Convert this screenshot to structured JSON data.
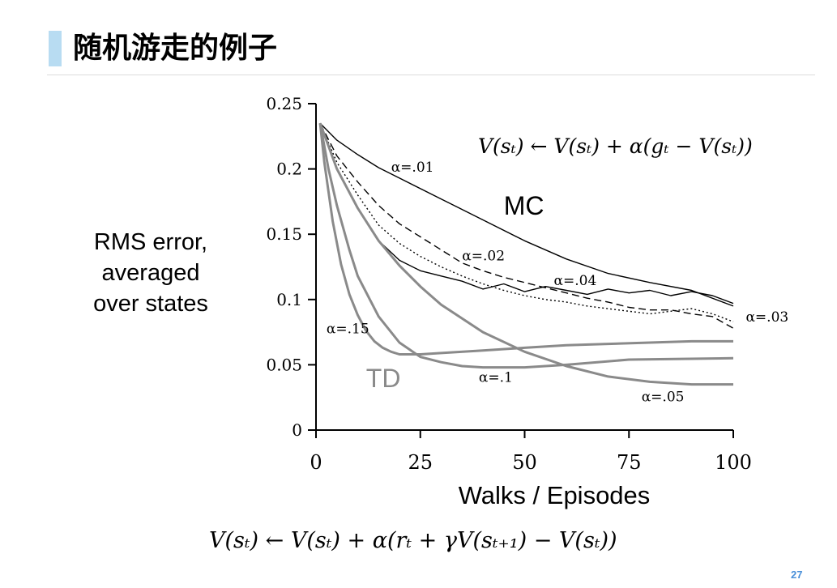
{
  "slide": {
    "title": "随机游走的例子",
    "page_number": "27",
    "colors": {
      "accent_bar": "#b8dcf2",
      "page_number": "#4a90d9",
      "mc_lines": "#000000",
      "td_lines": "#8a8a8a"
    }
  },
  "formulas": {
    "mc_update": "V(sₜ) ← V(sₜ) + α(gₜ − V(sₜ))",
    "td_update": "V(sₜ) ← V(sₜ) + α(rₜ + γV(sₜ₊₁) − V(sₜ))"
  },
  "chart_data": {
    "type": "line",
    "xlabel": "Walks / Episodes",
    "ylabel": "RMS error,\naveraged\nover states",
    "xlim": [
      0,
      100
    ],
    "ylim": [
      0,
      0.25
    ],
    "xticks": [
      0,
      25,
      50,
      75,
      100
    ],
    "xtick_labels": [
      "0",
      "25",
      "50",
      "75",
      "100"
    ],
    "yticks": [
      0,
      0.05,
      0.1,
      0.15,
      0.2,
      0.25
    ],
    "ytick_labels": [
      "0",
      "0.05",
      "0.1",
      "0.15",
      "0.2",
      "0.25"
    ],
    "grid": false,
    "group_labels": [
      {
        "text": "MC",
        "x": 45,
        "y": 0.165,
        "color": "#000000"
      },
      {
        "text": "TD",
        "x": 12,
        "y": 0.033,
        "color": "#8a8a8a"
      }
    ],
    "series": [
      {
        "name": "α=.01",
        "group": "MC",
        "style": "solid",
        "x": [
          1,
          5,
          10,
          15,
          20,
          30,
          40,
          50,
          60,
          70,
          80,
          90,
          100
        ],
        "y": [
          0.235,
          0.222,
          0.211,
          0.201,
          0.193,
          0.177,
          0.161,
          0.145,
          0.131,
          0.12,
          0.113,
          0.107,
          0.095
        ],
        "label": {
          "text": "α=.01",
          "x": 18,
          "y": 0.198
        }
      },
      {
        "name": "α=.02",
        "group": "MC",
        "style": "dashed",
        "x": [
          1,
          5,
          10,
          15,
          20,
          25,
          30,
          35,
          40,
          45,
          50,
          55,
          60,
          65,
          70,
          75,
          80,
          85,
          90,
          95,
          100
        ],
        "y": [
          0.235,
          0.21,
          0.19,
          0.172,
          0.158,
          0.148,
          0.138,
          0.128,
          0.122,
          0.117,
          0.113,
          0.109,
          0.105,
          0.101,
          0.098,
          0.094,
          0.092,
          0.092,
          0.089,
          0.087,
          0.078
        ],
        "label": {
          "text": "α=.02",
          "x": 35,
          "y": 0.13
        }
      },
      {
        "name": "α=.04",
        "group": "MC",
        "style": "solid",
        "x": [
          1,
          5,
          10,
          15,
          20,
          25,
          30,
          35,
          40,
          45,
          50,
          55,
          60,
          65,
          70,
          75,
          80,
          85,
          90,
          95,
          100
        ],
        "y": [
          0.235,
          0.2,
          0.17,
          0.145,
          0.13,
          0.122,
          0.118,
          0.114,
          0.108,
          0.112,
          0.106,
          0.11,
          0.107,
          0.104,
          0.108,
          0.105,
          0.107,
          0.103,
          0.106,
          0.103,
          0.097
        ],
        "label": {
          "text": "α=.04",
          "x": 57,
          "y": 0.111
        }
      },
      {
        "name": "α=.03",
        "group": "MC",
        "style": "dotted",
        "x": [
          1,
          5,
          10,
          15,
          20,
          25,
          30,
          35,
          40,
          45,
          50,
          55,
          60,
          65,
          70,
          75,
          80,
          85,
          90,
          95,
          100
        ],
        "y": [
          0.235,
          0.205,
          0.18,
          0.157,
          0.143,
          0.133,
          0.125,
          0.118,
          0.112,
          0.107,
          0.103,
          0.1,
          0.098,
          0.095,
          0.093,
          0.091,
          0.089,
          0.091,
          0.093,
          0.089,
          0.083
        ],
        "label": {
          "text": "α=.03",
          "x": 103,
          "y": 0.083
        }
      },
      {
        "name": "α=.15",
        "group": "TD",
        "style": "solid",
        "x": [
          1,
          2,
          4,
          6,
          8,
          10,
          12,
          14,
          16,
          18,
          20,
          25,
          30,
          40,
          50,
          60,
          70,
          80,
          90,
          100
        ],
        "y": [
          0.235,
          0.205,
          0.16,
          0.127,
          0.104,
          0.088,
          0.076,
          0.068,
          0.063,
          0.06,
          0.058,
          0.058,
          0.059,
          0.061,
          0.063,
          0.065,
          0.066,
          0.067,
          0.068,
          0.068
        ],
        "label": {
          "text": "α=.15",
          "x": 2.5,
          "y": 0.074
        }
      },
      {
        "name": "α=.1",
        "group": "TD",
        "style": "solid",
        "x": [
          1,
          3,
          5,
          8,
          10,
          15,
          20,
          25,
          30,
          35,
          40,
          50,
          60,
          75,
          100
        ],
        "y": [
          0.235,
          0.2,
          0.172,
          0.138,
          0.118,
          0.087,
          0.067,
          0.056,
          0.052,
          0.049,
          0.048,
          0.048,
          0.05,
          0.054,
          0.055
        ],
        "label": {
          "text": "α=.1",
          "x": 39,
          "y": 0.037
        }
      },
      {
        "name": "α=.05",
        "group": "TD",
        "style": "solid",
        "x": [
          1,
          5,
          10,
          15,
          20,
          25,
          30,
          40,
          50,
          60,
          70,
          80,
          90,
          100
        ],
        "y": [
          0.235,
          0.2,
          0.17,
          0.145,
          0.126,
          0.11,
          0.096,
          0.075,
          0.06,
          0.049,
          0.041,
          0.037,
          0.035,
          0.035
        ],
        "label": {
          "text": "α=.05",
          "x": 78,
          "y": 0.022
        }
      }
    ]
  }
}
